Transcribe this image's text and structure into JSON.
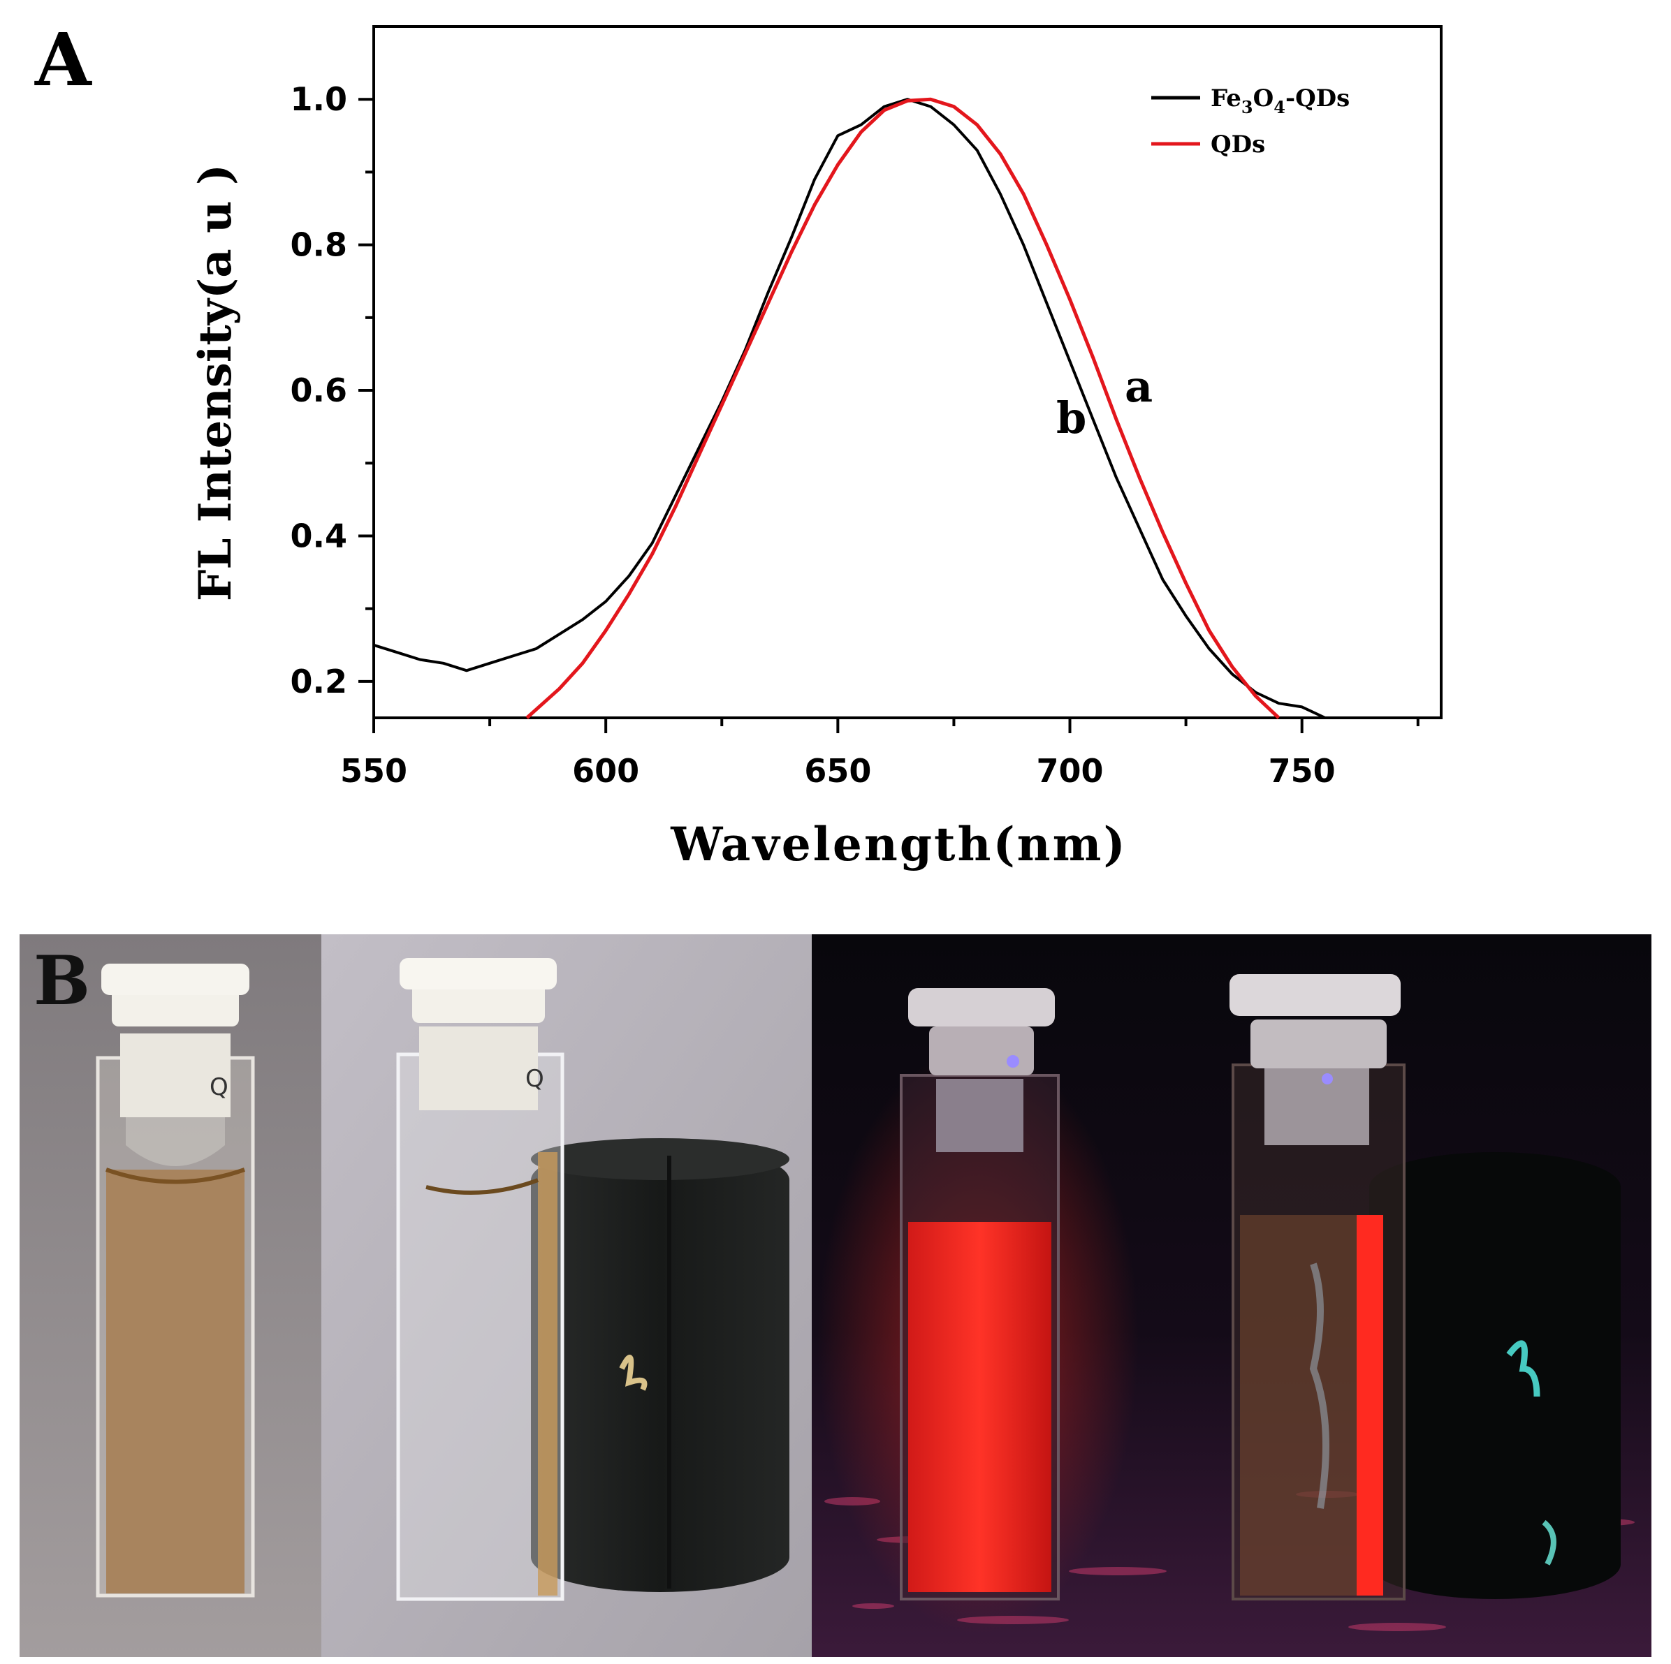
{
  "panels": {
    "a_label": "A",
    "b_label": "B"
  },
  "chart_data": {
    "type": "line",
    "title": "",
    "xlabel": "Wavelength(nm)",
    "ylabel": "FL Intensity(a u )",
    "xlim": [
      550,
      780
    ],
    "ylim": [
      0.15,
      1.1
    ],
    "x_ticks": [
      550,
      600,
      650,
      700,
      750
    ],
    "y_ticks": [
      0.2,
      0.4,
      0.6,
      0.8,
      1.0
    ],
    "y_tick_labels": [
      "0.2",
      "0.4",
      "0.6",
      "0.8",
      "1.0"
    ],
    "grid": false,
    "legend_position": "top-right",
    "series": [
      {
        "name": "Fe3O4-QDs",
        "legend_parts": {
          "a": "Fe",
          "b": "3",
          "c": "O",
          "d": "4",
          "e": "-QDs"
        },
        "curve_label": "b",
        "color": "#000000",
        "x": [
          550,
          555,
          560,
          565,
          570,
          575,
          580,
          585,
          590,
          595,
          600,
          605,
          610,
          615,
          620,
          625,
          630,
          635,
          640,
          645,
          650,
          655,
          660,
          665,
          670,
          675,
          680,
          685,
          690,
          695,
          700,
          705,
          710,
          715,
          720,
          725,
          730,
          735,
          740,
          745,
          750,
          755
        ],
        "y": [
          0.25,
          0.24,
          0.23,
          0.225,
          0.215,
          0.225,
          0.235,
          0.245,
          0.265,
          0.285,
          0.31,
          0.345,
          0.39,
          0.455,
          0.52,
          0.585,
          0.655,
          0.735,
          0.81,
          0.89,
          0.95,
          0.965,
          0.99,
          1.0,
          0.99,
          0.965,
          0.93,
          0.87,
          0.8,
          0.72,
          0.64,
          0.56,
          0.48,
          0.41,
          0.34,
          0.29,
          0.245,
          0.21,
          0.185,
          0.17,
          0.165,
          0.15
        ]
      },
      {
        "name": "QDs",
        "curve_label": "a",
        "color": "#e3161c",
        "x": [
          583,
          590,
          595,
          600,
          605,
          610,
          615,
          620,
          625,
          630,
          635,
          640,
          645,
          650,
          655,
          660,
          665,
          670,
          675,
          680,
          685,
          690,
          695,
          700,
          705,
          710,
          715,
          720,
          725,
          730,
          735,
          740,
          745
        ],
        "y": [
          0.15,
          0.19,
          0.225,
          0.27,
          0.32,
          0.375,
          0.44,
          0.51,
          0.58,
          0.65,
          0.72,
          0.79,
          0.855,
          0.91,
          0.955,
          0.985,
          0.998,
          1.0,
          0.99,
          0.965,
          0.925,
          0.87,
          0.8,
          0.725,
          0.645,
          0.56,
          0.48,
          0.405,
          0.335,
          0.27,
          0.22,
          0.18,
          0.15
        ]
      }
    ]
  },
  "photo": {
    "left_bg": "#8f8a8c",
    "mid_bg": "#b8b4bb",
    "right_bg": "#07070b",
    "amber_solution": "#a8845e",
    "red_fluorescence": "#f0221c",
    "magnet": "#1b1d1c",
    "cap": "#f1efe8",
    "cuvette_mark": "Q"
  }
}
